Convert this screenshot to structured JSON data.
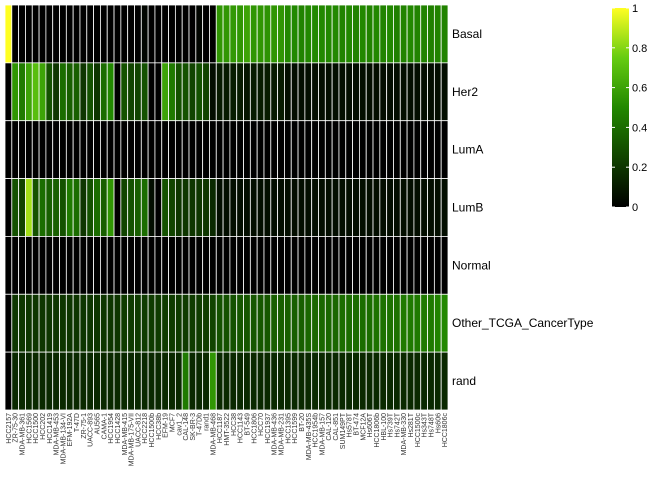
{
  "chart_data": {
    "type": "heatmap",
    "title": "",
    "xlabel": "",
    "ylabel": "",
    "rows": [
      "Basal",
      "Her2",
      "LumA",
      "LumB",
      "Normal",
      "Other_TCGA_CancerType",
      "rand"
    ],
    "columns": [
      "HCC2157",
      "ZR-75-30",
      "MDA-MB-361",
      "HCC1569",
      "HCC1500",
      "HCC202",
      "HCC1419",
      "MDA-MB-453",
      "MDA-MB-134-VI",
      "EFM-192A",
      "T-47D",
      "ZR-75-1",
      "UACC-893",
      "AU565",
      "CAMA-1",
      "HCC1954",
      "HCC1428",
      "MDA-MB-415",
      "MDA-MB-175-VII",
      "UACC-812",
      "HCC2218",
      "HCC1500b",
      "HCC38b",
      "EFM-19",
      "MCF7",
      "cav1_2",
      "CAL-148",
      "SK-BR-3",
      "T-47Db",
      "rand1",
      "MDA-MB-468",
      "HCC1187",
      "HMT-3522",
      "HCC38",
      "HCC1143",
      "BT-549",
      "HCC1806",
      "HCC70",
      "HCC1937",
      "MDA-MB-436",
      "MDA-MB-231",
      "HCC1395",
      "HCC1599",
      "BT-20",
      "MDA-MB-435S",
      "HCC1954b",
      "MDA-MB-157",
      "CAL-120",
      "CAL-851",
      "SUM149PT",
      "Hs578T",
      "BT-474",
      "MCF12A",
      "Hs606T",
      "HCC1806b",
      "HBL-100",
      "Hs739T",
      "Hs742T",
      "MDA-MB-330",
      "Hs281T",
      "HCC1500c",
      "Hs343T",
      "Hs748T",
      "Hs606",
      "HCC1806c"
    ],
    "values": [
      [
        1.0,
        0.0,
        0.0,
        0.0,
        0.0,
        0.0,
        0.0,
        0.0,
        0.0,
        0.0,
        0.0,
        0.0,
        0.0,
        0.0,
        0.0,
        0.0,
        0.0,
        0.0,
        0.0,
        0.0,
        0.02,
        0.0,
        0.0,
        0.0,
        0.0,
        0.0,
        0.0,
        0.0,
        0.02,
        0.0,
        0.0,
        0.55,
        0.55,
        0.56,
        0.55,
        0.6,
        0.55,
        0.55,
        0.54,
        0.55,
        0.55,
        0.5,
        0.5,
        0.48,
        0.5,
        0.5,
        0.5,
        0.5,
        0.5,
        0.48,
        0.5,
        0.48,
        0.5,
        0.48,
        0.5,
        0.48,
        0.5,
        0.47,
        0.48,
        0.5,
        0.48,
        0.48,
        0.47,
        0.48,
        0.48
      ],
      [
        0.0,
        0.55,
        0.45,
        0.6,
        0.7,
        0.6,
        0.3,
        0.2,
        0.4,
        0.35,
        0.35,
        0.2,
        0.3,
        0.2,
        0.4,
        0.5,
        0.0,
        0.3,
        0.25,
        0.25,
        0.3,
        0.0,
        0.0,
        0.6,
        0.45,
        0.3,
        0.3,
        0.25,
        0.3,
        0.25,
        0.05,
        0.1,
        0.1,
        0.1,
        0.1,
        0.08,
        0.1,
        0.1,
        0.1,
        0.1,
        0.1,
        0.05,
        0.05,
        0.05,
        0.05,
        0.05,
        0.05,
        0.05,
        0.05,
        0.05,
        0.05,
        0.05,
        0.05,
        0.05,
        0.05,
        0.05,
        0.05,
        0.05,
        0.05,
        0.05,
        0.05,
        0.05,
        0.05,
        0.05,
        0.05
      ],
      [
        0.0,
        0.0,
        0.0,
        0.0,
        0.0,
        0.0,
        0.0,
        0.0,
        0.0,
        0.0,
        0.0,
        0.0,
        0.0,
        0.0,
        0.0,
        0.0,
        0.0,
        0.0,
        0.0,
        0.0,
        0.0,
        0.0,
        0.0,
        0.0,
        0.0,
        0.0,
        0.0,
        0.0,
        0.0,
        0.0,
        0.0,
        0.0,
        0.0,
        0.0,
        0.0,
        0.0,
        0.0,
        0.0,
        0.0,
        0.0,
        0.0,
        0.0,
        0.0,
        0.0,
        0.0,
        0.0,
        0.0,
        0.0,
        0.0,
        0.0,
        0.0,
        0.0,
        0.0,
        0.0,
        0.0,
        0.0,
        0.0,
        0.0,
        0.0,
        0.0,
        0.0,
        0.0,
        0.0,
        0.0,
        0.0
      ],
      [
        0.0,
        0.3,
        0.25,
        0.85,
        0.3,
        0.4,
        0.35,
        0.35,
        0.3,
        0.45,
        0.4,
        0.2,
        0.3,
        0.4,
        0.35,
        0.55,
        0.0,
        0.25,
        0.3,
        0.35,
        0.4,
        0.05,
        0.0,
        0.3,
        0.25,
        0.2,
        0.2,
        0.2,
        0.2,
        0.2,
        0.15,
        0.05,
        0.05,
        0.05,
        0.05,
        0.05,
        0.05,
        0.05,
        0.05,
        0.05,
        0.05,
        0.05,
        0.05,
        0.05,
        0.05,
        0.05,
        0.05,
        0.05,
        0.05,
        0.05,
        0.05,
        0.05,
        0.05,
        0.05,
        0.05,
        0.05,
        0.05,
        0.05,
        0.05,
        0.05,
        0.05,
        0.05,
        0.05,
        0.05,
        0.05
      ],
      [
        0.0,
        0.0,
        0.0,
        0.0,
        0.0,
        0.0,
        0.0,
        0.0,
        0.0,
        0.0,
        0.0,
        0.0,
        0.0,
        0.0,
        0.0,
        0.0,
        0.0,
        0.0,
        0.0,
        0.0,
        0.0,
        0.0,
        0.0,
        0.0,
        0.0,
        0.0,
        0.0,
        0.0,
        0.0,
        0.0,
        0.0,
        0.0,
        0.0,
        0.0,
        0.0,
        0.0,
        0.0,
        0.0,
        0.0,
        0.0,
        0.0,
        0.0,
        0.0,
        0.0,
        0.0,
        0.0,
        0.0,
        0.0,
        0.0,
        0.0,
        0.0,
        0.0,
        0.0,
        0.0,
        0.0,
        0.0,
        0.0,
        0.0,
        0.0,
        0.0,
        0.0,
        0.0,
        0.0,
        0.0,
        0.0
      ],
      [
        0.0,
        0.2,
        0.2,
        0.2,
        0.2,
        0.2,
        0.2,
        0.2,
        0.2,
        0.2,
        0.2,
        0.2,
        0.2,
        0.2,
        0.2,
        0.2,
        0.2,
        0.22,
        0.22,
        0.22,
        0.22,
        0.22,
        0.22,
        0.22,
        0.22,
        0.22,
        0.22,
        0.22,
        0.22,
        0.22,
        0.25,
        0.3,
        0.3,
        0.3,
        0.32,
        0.32,
        0.32,
        0.32,
        0.32,
        0.35,
        0.35,
        0.35,
        0.35,
        0.35,
        0.38,
        0.38,
        0.38,
        0.38,
        0.38,
        0.4,
        0.4,
        0.4,
        0.4,
        0.4,
        0.42,
        0.42,
        0.42,
        0.42,
        0.45,
        0.45,
        0.45,
        0.45,
        0.45,
        0.48,
        0.5
      ],
      [
        0.0,
        0.15,
        0.15,
        0.15,
        0.15,
        0.15,
        0.15,
        0.15,
        0.15,
        0.15,
        0.15,
        0.15,
        0.15,
        0.15,
        0.15,
        0.15,
        0.15,
        0.15,
        0.15,
        0.15,
        0.15,
        0.15,
        0.15,
        0.15,
        0.15,
        0.15,
        0.45,
        0.15,
        0.15,
        0.15,
        0.55,
        0.15,
        0.15,
        0.15,
        0.15,
        0.15,
        0.15,
        0.15,
        0.15,
        0.15,
        0.15,
        0.15,
        0.15,
        0.15,
        0.15,
        0.15,
        0.15,
        0.15,
        0.15,
        0.15,
        0.15,
        0.15,
        0.15,
        0.15,
        0.15,
        0.15,
        0.15,
        0.15,
        0.15,
        0.15,
        0.15,
        0.15,
        0.15,
        0.15,
        0.15
      ]
    ],
    "colorbar": {
      "ticks": [
        0,
        0.2,
        0.4,
        0.6,
        0.8,
        1
      ],
      "tick_labels": [
        "0",
        "0.2",
        "0.4",
        "0.6",
        "0.8",
        "1"
      ],
      "range": [
        0,
        1
      ]
    },
    "colors": {
      "low": "#000000",
      "mid": "#33bb00",
      "high": "#ffff22",
      "grid": "#ffffff"
    }
  }
}
